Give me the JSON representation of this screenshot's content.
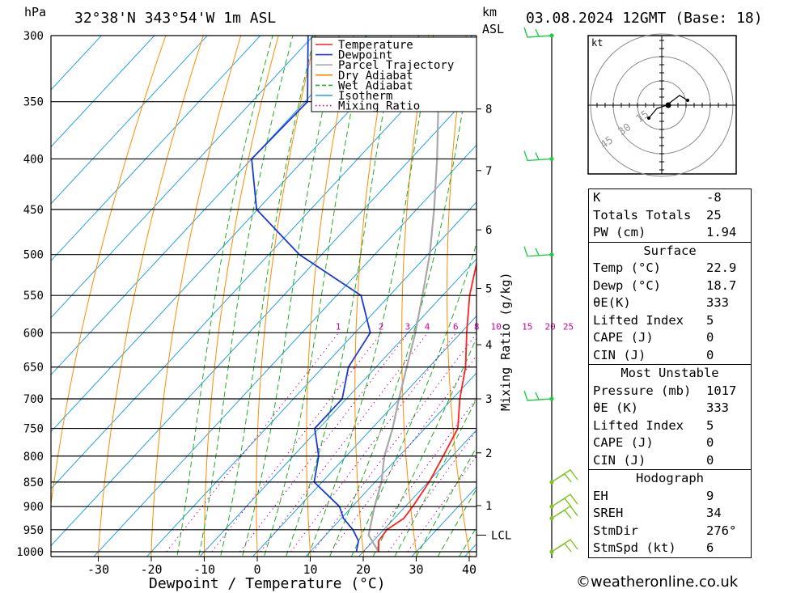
{
  "header": {
    "location": "32°38'N 343°54'W 1m ASL",
    "datetime": "03.08.2024 12GMT (Base: 18)",
    "hpa_label": "hPa",
    "km_label": "km",
    "asl_label": "ASL"
  },
  "chart_data": {
    "type": "skew-t",
    "xlabel": "Dewpoint / Temperature (°C)",
    "ylabel": "hPa",
    "right_axis_label": "Mixing Ratio (g/kg)",
    "xlim": [
      -40,
      40
    ],
    "ylim": [
      1000,
      300
    ],
    "pressure_levels": [
      300,
      350,
      400,
      450,
      500,
      550,
      600,
      650,
      700,
      750,
      800,
      850,
      900,
      950,
      1000
    ],
    "temp_ticks": [
      -30,
      -20,
      -10,
      0,
      10,
      20,
      30,
      40
    ],
    "km_ticks": [
      {
        "km": "1",
        "p": 898
      },
      {
        "km": "2",
        "p": 794
      },
      {
        "km": "3",
        "p": 700
      },
      {
        "km": "4",
        "p": 617
      },
      {
        "km": "5",
        "p": 541
      },
      {
        "km": "6",
        "p": 472
      },
      {
        "km": "7",
        "p": 411
      },
      {
        "km": "8",
        "p": 356
      }
    ],
    "lcl": {
      "label": "LCL",
      "p": 962
    },
    "mixing_ratios": [
      "1",
      "2",
      "3",
      "4",
      "6",
      "8",
      "10",
      "15",
      "20",
      "25"
    ],
    "legend": [
      "Temperature",
      "Dewpoint",
      "Parcel Trajectory",
      "Dry Adiabat",
      "Wet Adiabat",
      "Isotherm",
      "Mixing Ratio"
    ],
    "colors": {
      "temperature": "#ff2020",
      "dewpoint": "#1a3ad8",
      "parcel": "#a8a8a8",
      "dry_adiabat": "#ff8c00",
      "wet_adiabat": "#1fae1f",
      "isotherm": "#26a0e6",
      "mixing_ratio": "#cc0099",
      "wind": "#7fc41f"
    },
    "temperature": [
      {
        "p": 1000,
        "t": 22.9
      },
      {
        "p": 975,
        "t": 21.0
      },
      {
        "p": 950,
        "t": 20.6
      },
      {
        "p": 925,
        "t": 21.8
      },
      {
        "p": 900,
        "t": 21.4
      },
      {
        "p": 850,
        "t": 20.2
      },
      {
        "p": 800,
        "t": 18.3
      },
      {
        "p": 750,
        "t": 16.2
      },
      {
        "p": 700,
        "t": 11.4
      },
      {
        "p": 650,
        "t": 6.9
      },
      {
        "p": 600,
        "t": 1.1
      },
      {
        "p": 550,
        "t": -4.9
      },
      {
        "p": 500,
        "t": -10.4
      },
      {
        "p": 450,
        "t": -16.4
      },
      {
        "p": 400,
        "t": -23.0
      },
      {
        "p": 370,
        "t": -28.8
      }
    ],
    "dewpoint": [
      {
        "p": 1000,
        "t": 18.7
      },
      {
        "p": 975,
        "t": 17.2
      },
      {
        "p": 950,
        "t": 14.2
      },
      {
        "p": 925,
        "t": 10.4
      },
      {
        "p": 900,
        "t": 7.6
      },
      {
        "p": 850,
        "t": -1.5
      },
      {
        "p": 800,
        "t": -5.2
      },
      {
        "p": 750,
        "t": -10.8
      },
      {
        "p": 700,
        "t": -10.8
      },
      {
        "p": 650,
        "t": -15.2
      },
      {
        "p": 600,
        "t": -17.1
      },
      {
        "p": 550,
        "t": -25.4
      },
      {
        "p": 500,
        "t": -44.2
      },
      {
        "p": 450,
        "t": -60.2
      },
      {
        "p": 400,
        "t": -70.0
      },
      {
        "p": 350,
        "t": -69.5
      },
      {
        "p": 300,
        "t": -81.0
      }
    ],
    "parcel": [
      {
        "p": 1000,
        "t": 22.9
      },
      {
        "p": 962,
        "t": 18.1
      },
      {
        "p": 900,
        "t": 14.2
      },
      {
        "p": 850,
        "t": 11.2
      },
      {
        "p": 800,
        "t": 7.2
      },
      {
        "p": 750,
        "t": 3.9
      },
      {
        "p": 700,
        "t": -0.1
      },
      {
        "p": 650,
        "t": -4.2
      },
      {
        "p": 600,
        "t": -8.6
      },
      {
        "p": 550,
        "t": -13.8
      },
      {
        "p": 500,
        "t": -19.6
      },
      {
        "p": 450,
        "t": -26.7
      },
      {
        "p": 400,
        "t": -35.0
      },
      {
        "p": 350,
        "t": -44.8
      },
      {
        "p": 310,
        "t": -54.0
      }
    ],
    "wind_levels": [
      300,
      400,
      500,
      700,
      850,
      900,
      925,
      1000
    ]
  },
  "hodograph": {
    "unit": "kt",
    "rings": [
      "15",
      "30",
      "45"
    ]
  },
  "indices": [
    {
      "label": "K",
      "value": "-8"
    },
    {
      "label": "Totals Totals",
      "value": "25"
    },
    {
      "label": "PW (cm)",
      "value": "1.94"
    }
  ],
  "surface": {
    "title": "Surface",
    "rows": [
      {
        "label": "Temp (°C)",
        "value": "22.9"
      },
      {
        "label": "Dewp (°C)",
        "value": "18.7"
      },
      {
        "label": "θE(K)",
        "value": "333"
      },
      {
        "label": "Lifted Index",
        "value": "5"
      },
      {
        "label": "CAPE (J)",
        "value": "0"
      },
      {
        "label": "CIN (J)",
        "value": "0"
      }
    ]
  },
  "most_unstable": {
    "title": "Most Unstable",
    "rows": [
      {
        "label": "Pressure (mb)",
        "value": "1017"
      },
      {
        "label": "θE (K)",
        "value": "333"
      },
      {
        "label": "Lifted Index",
        "value": "5"
      },
      {
        "label": "CAPE (J)",
        "value": "0"
      },
      {
        "label": "CIN (J)",
        "value": "0"
      }
    ]
  },
  "hodograph_stats": {
    "title": "Hodograph",
    "rows": [
      {
        "label": "EH",
        "value": "9"
      },
      {
        "label": "SREH",
        "value": "34"
      },
      {
        "label": "StmDir",
        "value": "276°"
      },
      {
        "label": "StmSpd (kt)",
        "value": "6"
      }
    ]
  },
  "footer": "©weatheronline.co.uk"
}
